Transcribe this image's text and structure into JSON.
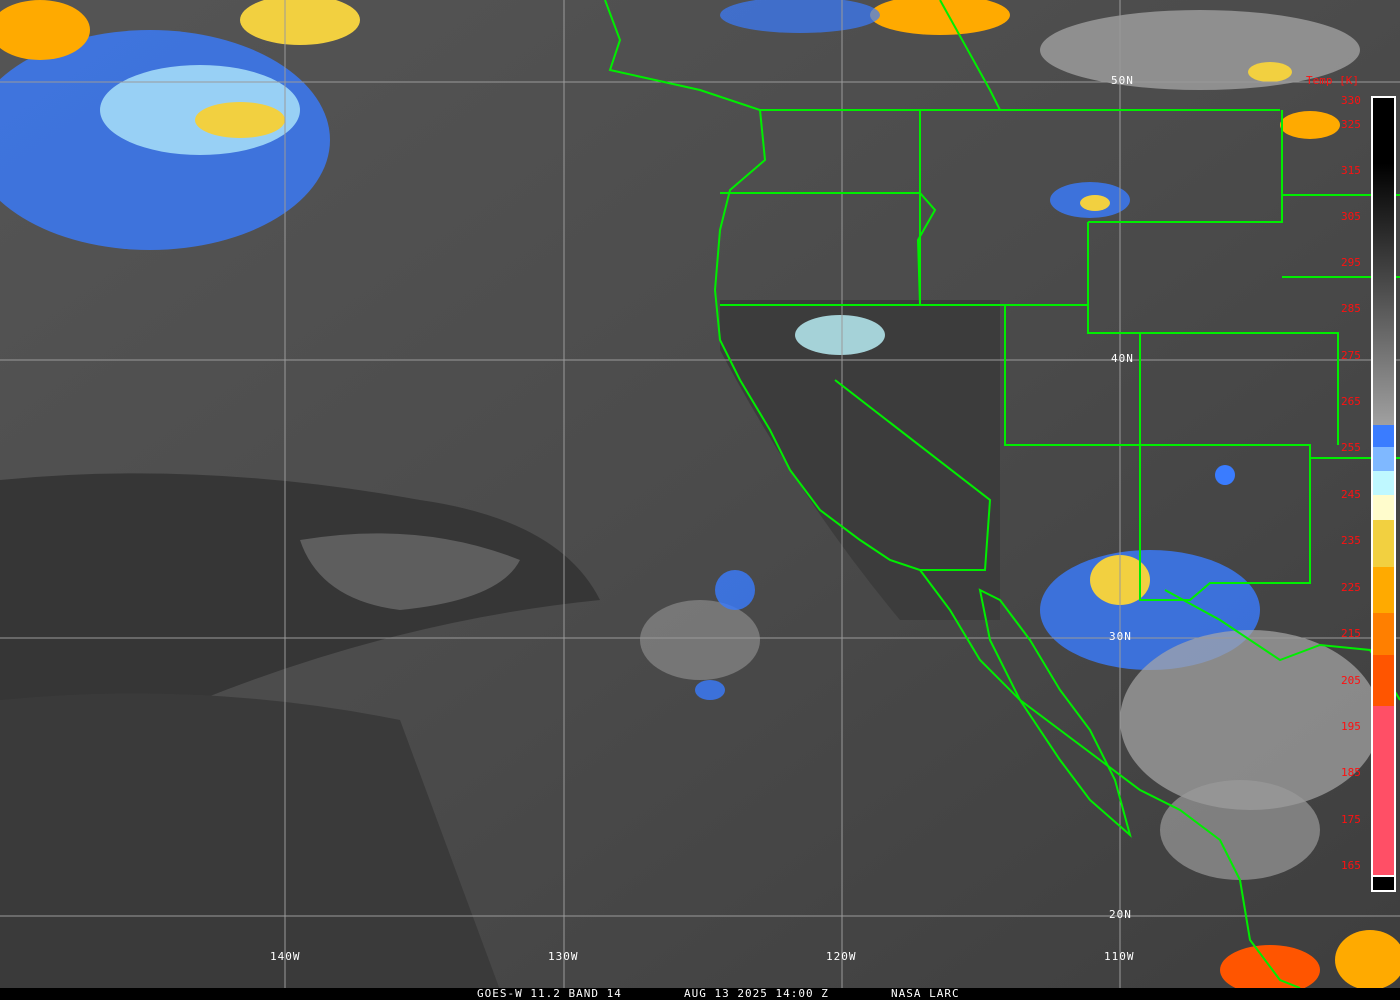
{
  "map": {
    "lat_labels": [
      "50N",
      "40N",
      "30N",
      "20N"
    ],
    "lon_labels": [
      "140W",
      "130W",
      "120W",
      "110W"
    ],
    "border_color": "#00ee00",
    "grid_color": "#9a9a9a"
  },
  "colorbar": {
    "title": "Temp [K]",
    "ticks": [
      "330",
      "325",
      "315",
      "305",
      "295",
      "285",
      "275",
      "265",
      "255",
      "245",
      "235",
      "225",
      "215",
      "205",
      "195",
      "185",
      "175",
      "165"
    ],
    "colors": [
      "#000000",
      "#9a9a9a",
      "#3a7cff",
      "#7fb8ff",
      "#bff8ff",
      "#fffccc",
      "#f2d040",
      "#ffaa00",
      "#ff7f00",
      "#ff5500",
      "#ff4f66"
    ]
  },
  "caption": {
    "product": "GOES-W 11.2 BAND 14",
    "datetime": "AUG 13 2025 14:00 Z",
    "source": "NASA LARC"
  }
}
